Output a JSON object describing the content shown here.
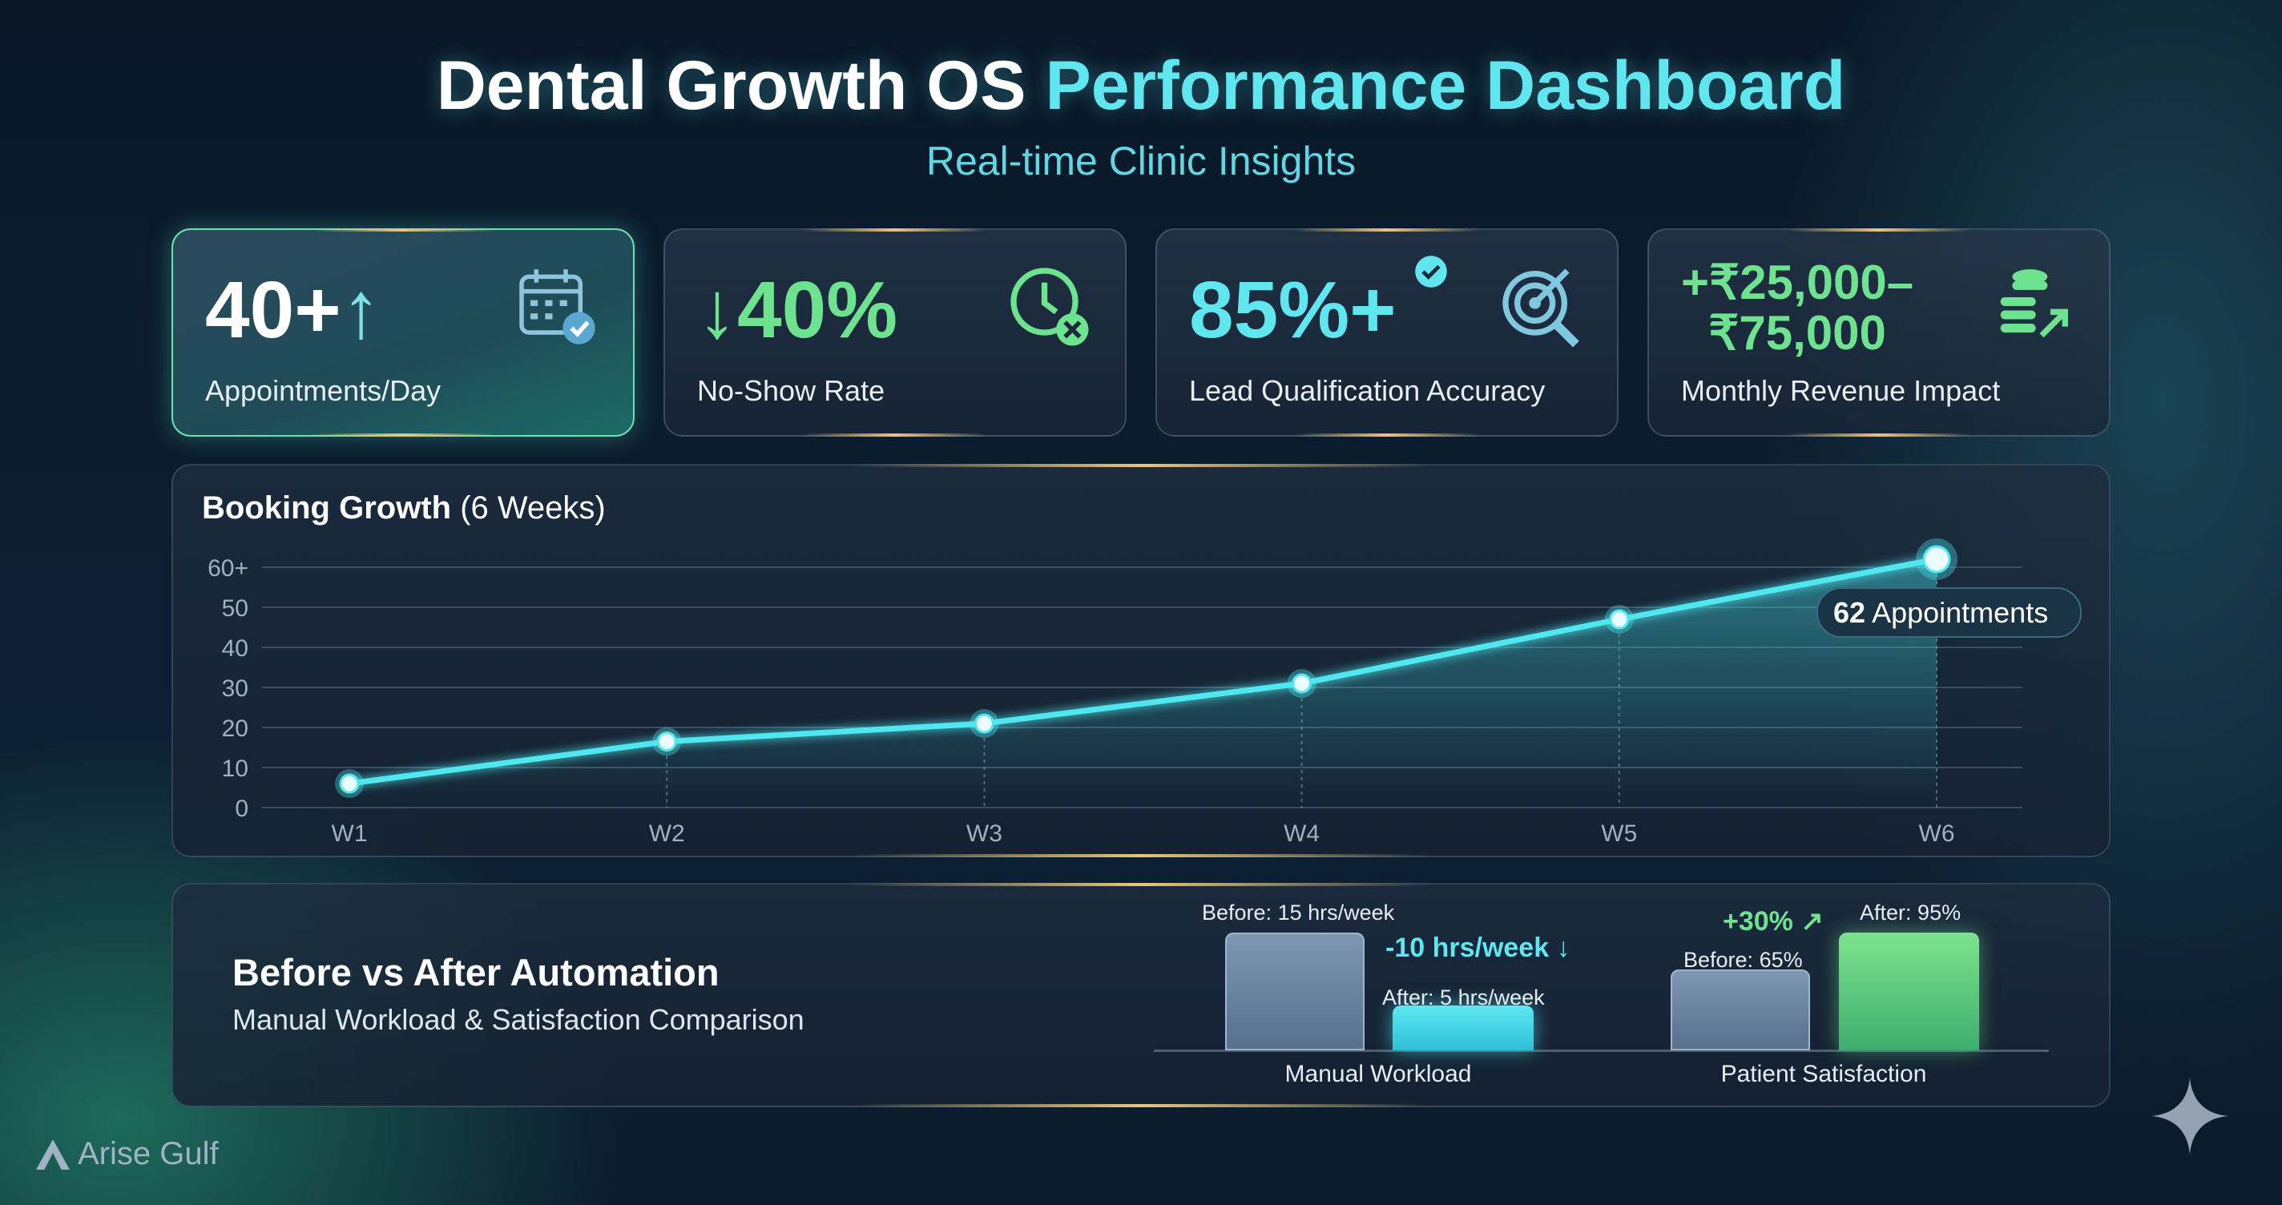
{
  "header": {
    "title_part1": "Dental Growth OS",
    "title_part2": "Performance Dashboard",
    "subtitle": "Real-time Clinic Insights"
  },
  "kpis": [
    {
      "value": "40+",
      "arrow": "↑",
      "label": "Appointments/Day",
      "icon": "calendar-check-icon",
      "color": "#ffffff"
    },
    {
      "arrow": "↓",
      "value": "40%",
      "label": "No-Show Rate",
      "icon": "clock-x-icon",
      "color": "#6ee38f"
    },
    {
      "value": "85%+",
      "label": "Lead Qualification Accuracy",
      "icon": "target-search-icon",
      "color": "#5fe6ee"
    },
    {
      "value_line1": "+₹25,000–",
      "value_line2": "₹75,000",
      "label": "Monthly Revenue Impact",
      "icon": "coins-growth-icon",
      "color": "#6ee38f"
    }
  ],
  "chart_data": {
    "type": "line",
    "title": "Booking Growth",
    "title_suffix": "(6 Weeks)",
    "categories": [
      "W1",
      "W2",
      "W3",
      "W4",
      "W5",
      "W6"
    ],
    "values": [
      6,
      16.5,
      21,
      31,
      47,
      62
    ],
    "yticks": [
      "0",
      "10",
      "20",
      "30",
      "40",
      "50",
      "60+"
    ],
    "ylim": [
      0,
      60
    ],
    "annotation": {
      "value": "62",
      "text": "Appointments"
    },
    "color": "#4fe8f0"
  },
  "comparison": {
    "title": "Before vs After Automation",
    "subtitle": "Manual Workload & Satisfaction Comparison",
    "groups": [
      {
        "name": "Manual Workload",
        "before": 15,
        "after": 5,
        "before_label": "Before:",
        "before_value": "15 hrs/week",
        "after_label": "After:",
        "after_value": "5 hrs/week",
        "delta": "-10 hrs/week ↓"
      },
      {
        "name": "Patient Satisfaction",
        "before": 65,
        "after": 95,
        "before_label": "Before:",
        "before_value": "65%",
        "after_label": "After:",
        "after_value": "95%",
        "delta": "+30% ↗"
      }
    ]
  },
  "brand": {
    "name": "Arise Gulf"
  }
}
